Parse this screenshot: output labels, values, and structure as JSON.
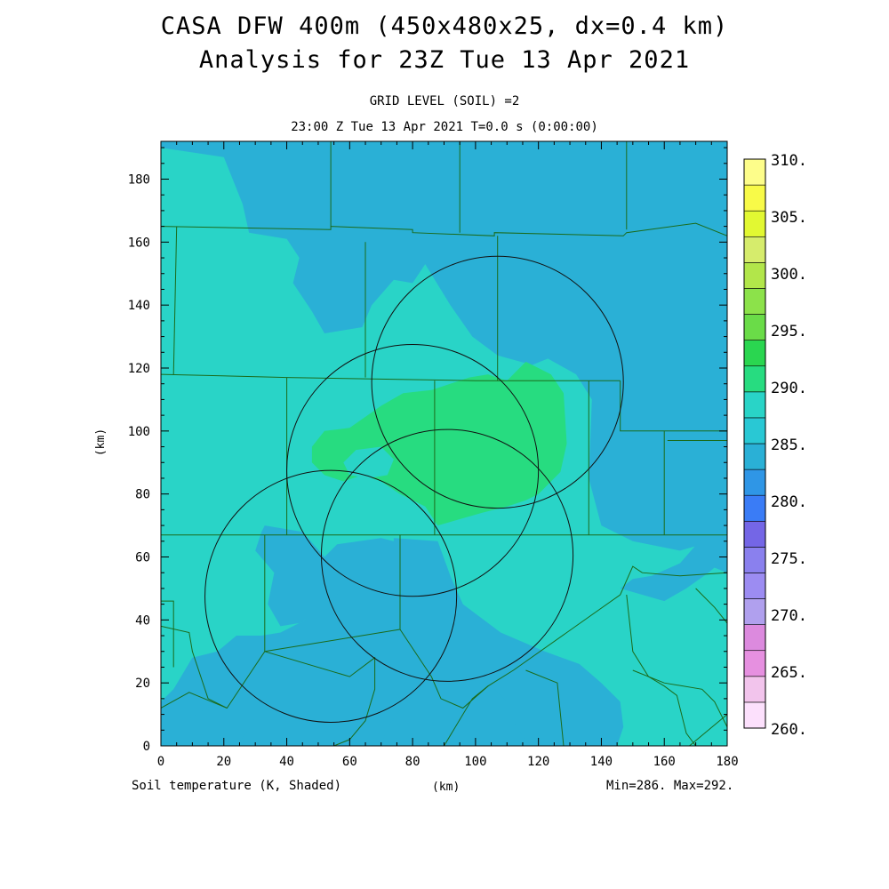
{
  "title": {
    "line1": "CASA DFW 400m (450x480x25, dx=0.4 km)",
    "line2": "Analysis for 23Z Tue 13 Apr 2021"
  },
  "subtitle": {
    "line1": "GRID LEVEL (SOIL) =2",
    "line2": "23:00 Z Tue 13 Apr 2021   T=0.0 s (0:00:00)"
  },
  "footer": {
    "field_label": "Soil temperature (K, Shaded)",
    "x_unit": "(km)",
    "minmax": "Min=286. Max=292."
  },
  "colors": {
    "c285": "#2ab0d6",
    "c290": "#29d4c7",
    "c295": "#27dc80",
    "boundary": "#1b6b1b",
    "ring": "#111111"
  },
  "chart_data": {
    "type": "heatmap",
    "field": "Soil temperature (K, Shaded)",
    "xlabel": "(km)",
    "ylabel": "(km)",
    "xlim": [
      0,
      180
    ],
    "ylim": [
      0,
      192
    ],
    "xticks": [
      "0",
      "20",
      "40",
      "60",
      "80",
      "100",
      "120",
      "140",
      "160",
      "180"
    ],
    "yticks": [
      "0",
      "20",
      "40",
      "60",
      "80",
      "100",
      "120",
      "140",
      "160",
      "180"
    ],
    "colorbar": {
      "labels": [
        "260.",
        "265.",
        "270.",
        "275.",
        "280.",
        "285.",
        "290.",
        "295.",
        "300.",
        "305.",
        "310."
      ],
      "colors": [
        "#fce0fc",
        "#f2c4ec",
        "#e690e0",
        "#dc8ade",
        "#b0a0ee",
        "#9c8cf2",
        "#8a80ee",
        "#7466e6",
        "#3a7cf6",
        "#2f96e6",
        "#2ab0d6",
        "#29c8d4",
        "#29d4c7",
        "#27dc80",
        "#2ad650",
        "#6adc48",
        "#8ce24a",
        "#b2e64a",
        "#d6ec6c",
        "#e2f832",
        "#f8fa48",
        "#fdfd8a"
      ]
    },
    "min": 286,
    "max": 292,
    "radar_rings": [
      {
        "cx": 107,
        "cy": 115.5,
        "r": 40
      },
      {
        "cx": 80,
        "cy": 87.5,
        "r": 40
      },
      {
        "cx": 91,
        "cy": 60.5,
        "r": 40
      },
      {
        "cx": 54,
        "cy": 47.5,
        "r": 40
      }
    ],
    "regions": [
      {
        "level": 290,
        "poly": [
          [
            0,
            190
          ],
          [
            20,
            187
          ],
          [
            26,
            172
          ],
          [
            28,
            163
          ],
          [
            40,
            161
          ],
          [
            44,
            155
          ],
          [
            42,
            147
          ],
          [
            48,
            138
          ],
          [
            52,
            131
          ],
          [
            64,
            133
          ],
          [
            67,
            140
          ],
          [
            74,
            148
          ],
          [
            80,
            147
          ],
          [
            84,
            153
          ],
          [
            92,
            140
          ],
          [
            99,
            130
          ],
          [
            107,
            124
          ],
          [
            118,
            121
          ],
          [
            123,
            123
          ],
          [
            132,
            118
          ],
          [
            137,
            110
          ],
          [
            136,
            85
          ],
          [
            140,
            70
          ],
          [
            150,
            65
          ],
          [
            165,
            62
          ],
          [
            172,
            64
          ],
          [
            175,
            57
          ],
          [
            180,
            55
          ],
          [
            180,
            0
          ],
          [
            132,
            0
          ],
          [
            128,
            15
          ],
          [
            122,
            20
          ],
          [
            112,
            22
          ],
          [
            105,
            25
          ],
          [
            98,
            30
          ],
          [
            94,
            35
          ],
          [
            92,
            40
          ],
          [
            88,
            55
          ],
          [
            84,
            60
          ],
          [
            78,
            64
          ],
          [
            70,
            66
          ],
          [
            56,
            64
          ],
          [
            52,
            60
          ],
          [
            54,
            48
          ],
          [
            46,
            40
          ],
          [
            38,
            36
          ],
          [
            32,
            35
          ],
          [
            24,
            35
          ],
          [
            18,
            30
          ],
          [
            10,
            28
          ],
          [
            4,
            18
          ],
          [
            0,
            14
          ]
        ]
      },
      {
        "level": 285,
        "poly": [
          [
            33,
            70
          ],
          [
            45,
            68
          ],
          [
            52,
            60
          ],
          [
            57,
            50
          ],
          [
            54,
            44
          ],
          [
            44,
            39
          ],
          [
            38,
            38
          ],
          [
            34,
            45
          ],
          [
            36,
            55
          ],
          [
            30,
            62
          ],
          [
            32,
            68
          ]
        ]
      },
      {
        "level": 285,
        "poly": [
          [
            74,
            66
          ],
          [
            88,
            65
          ],
          [
            92,
            54
          ],
          [
            96,
            45
          ],
          [
            108,
            36
          ],
          [
            122,
            30
          ],
          [
            133,
            26
          ],
          [
            140,
            20
          ],
          [
            146,
            14
          ],
          [
            147,
            6
          ],
          [
            145,
            0
          ],
          [
            117,
            0
          ],
          [
            112,
            8
          ],
          [
            110,
            14
          ],
          [
            106,
            18
          ],
          [
            96,
            22
          ],
          [
            86,
            21
          ],
          [
            78,
            14
          ],
          [
            72,
            6
          ],
          [
            70,
            0
          ],
          [
            82,
            0
          ],
          [
            82,
            10
          ],
          [
            78,
            28
          ],
          [
            74,
            38
          ],
          [
            73,
            48
          ],
          [
            74,
            58
          ]
        ]
      },
      {
        "level": 285,
        "poly": [
          [
            146,
            50
          ],
          [
            160,
            46
          ],
          [
            167,
            50
          ],
          [
            174,
            55
          ],
          [
            180,
            60
          ],
          [
            180,
            70
          ],
          [
            172,
            66
          ],
          [
            165,
            58
          ],
          [
            156,
            54
          ],
          [
            150,
            53
          ]
        ]
      },
      {
        "level": 285,
        "poly": [
          [
            8,
            8
          ],
          [
            18,
            14
          ],
          [
            26,
            12
          ],
          [
            30,
            8
          ],
          [
            24,
            0
          ],
          [
            6,
            0
          ],
          [
            4,
            4
          ]
        ]
      },
      {
        "level": 285,
        "poly": [
          [
            55,
            8
          ],
          [
            58,
            4
          ],
          [
            56,
            0
          ],
          [
            52,
            0
          ],
          [
            52,
            4
          ]
        ]
      },
      {
        "level": 295,
        "poly": [
          [
            48,
            95
          ],
          [
            52,
            100
          ],
          [
            60,
            101
          ],
          [
            70,
            108
          ],
          [
            77,
            112
          ],
          [
            86,
            113
          ],
          [
            98,
            117
          ],
          [
            104,
            118
          ],
          [
            110,
            116
          ],
          [
            116,
            122
          ],
          [
            124,
            118
          ],
          [
            128,
            112
          ],
          [
            129,
            96
          ],
          [
            127,
            87
          ],
          [
            120,
            80
          ],
          [
            116,
            78
          ],
          [
            110,
            76
          ],
          [
            102,
            74
          ],
          [
            88,
            70
          ],
          [
            84,
            76
          ],
          [
            76,
            80
          ],
          [
            70,
            84
          ],
          [
            64,
            86
          ],
          [
            58,
            84
          ],
          [
            52,
            86
          ],
          [
            48,
            90
          ]
        ]
      },
      {
        "level": 290,
        "poly": [
          [
            58,
            90
          ],
          [
            62,
            94
          ],
          [
            70,
            95
          ],
          [
            74,
            91
          ],
          [
            72,
            86
          ],
          [
            66,
            85
          ],
          [
            60,
            86
          ]
        ]
      }
    ],
    "boundaries": [
      [
        [
          0,
          165
        ],
        [
          54,
          164
        ],
        [
          54,
          165
        ],
        [
          80,
          164
        ],
        [
          80,
          163
        ],
        [
          106,
          162
        ],
        [
          106,
          163
        ],
        [
          147,
          162
        ],
        [
          148,
          163
        ],
        [
          170,
          166
        ],
        [
          180,
          162
        ]
      ],
      [
        [
          0,
          118
        ],
        [
          40,
          117
        ],
        [
          100,
          116
        ],
        [
          146,
          116
        ]
      ],
      [
        [
          0,
          67
        ],
        [
          160,
          67
        ],
        [
          180,
          67
        ]
      ],
      [
        [
          54,
          192
        ],
        [
          54,
          165
        ]
      ],
      [
        [
          95,
          192
        ],
        [
          95,
          163
        ]
      ],
      [
        [
          148,
          192
        ],
        [
          148,
          164
        ]
      ],
      [
        [
          5,
          165
        ],
        [
          4,
          118
        ]
      ],
      [
        [
          40,
          117
        ],
        [
          40,
          67
        ]
      ],
      [
        [
          87,
          116
        ],
        [
          87,
          67
        ]
      ],
      [
        [
          136,
          116
        ],
        [
          136,
          67
        ]
      ],
      [
        [
          146,
          116
        ],
        [
          146,
          100
        ],
        [
          147,
          100
        ],
        [
          180,
          100
        ]
      ],
      [
        [
          160,
          100
        ],
        [
          160,
          67
        ]
      ],
      [
        [
          65,
          160
        ],
        [
          65,
          117
        ]
      ],
      [
        [
          107,
          162
        ],
        [
          107,
          116
        ]
      ],
      [
        [
          161,
          97
        ],
        [
          180,
          97
        ],
        [
          180,
          67
        ]
      ],
      [
        [
          33,
          67
        ],
        [
          33,
          30
        ]
      ],
      [
        [
          0,
          38
        ],
        [
          9,
          36
        ],
        [
          10,
          30
        ],
        [
          15,
          15
        ],
        [
          21,
          12
        ]
      ],
      [
        [
          0,
          12
        ],
        [
          9,
          17
        ],
        [
          21,
          12
        ],
        [
          33,
          30
        ],
        [
          60,
          22
        ],
        [
          68,
          28
        ],
        [
          68,
          18
        ],
        [
          65,
          8
        ],
        [
          60,
          2
        ],
        [
          55,
          0
        ]
      ],
      [
        [
          76,
          67
        ],
        [
          76,
          37
        ],
        [
          86,
          22
        ],
        [
          89,
          15
        ],
        [
          96,
          12
        ],
        [
          104,
          19
        ],
        [
          112,
          24
        ],
        [
          146,
          48
        ],
        [
          150,
          57
        ],
        [
          153,
          55
        ],
        [
          165,
          54
        ],
        [
          180,
          55
        ]
      ],
      [
        [
          33,
          30
        ],
        [
          76,
          37
        ]
      ],
      [
        [
          0,
          46
        ],
        [
          4,
          46
        ],
        [
          4,
          25
        ]
      ],
      [
        [
          90,
          0
        ],
        [
          99,
          15
        ],
        [
          104,
          19
        ]
      ],
      [
        [
          128,
          0
        ],
        [
          126,
          20
        ],
        [
          116,
          24
        ]
      ],
      [
        [
          148,
          48
        ],
        [
          150,
          30
        ],
        [
          155,
          22
        ],
        [
          160,
          19
        ],
        [
          164,
          16
        ],
        [
          165,
          12
        ],
        [
          167,
          4
        ],
        [
          170,
          0
        ]
      ],
      [
        [
          168,
          0
        ],
        [
          180,
          10
        ]
      ],
      [
        [
          150,
          24
        ],
        [
          160,
          20
        ],
        [
          172,
          18
        ],
        [
          176,
          14
        ],
        [
          180,
          6
        ]
      ],
      [
        [
          170,
          50
        ],
        [
          176,
          44
        ],
        [
          180,
          39
        ]
      ]
    ]
  }
}
